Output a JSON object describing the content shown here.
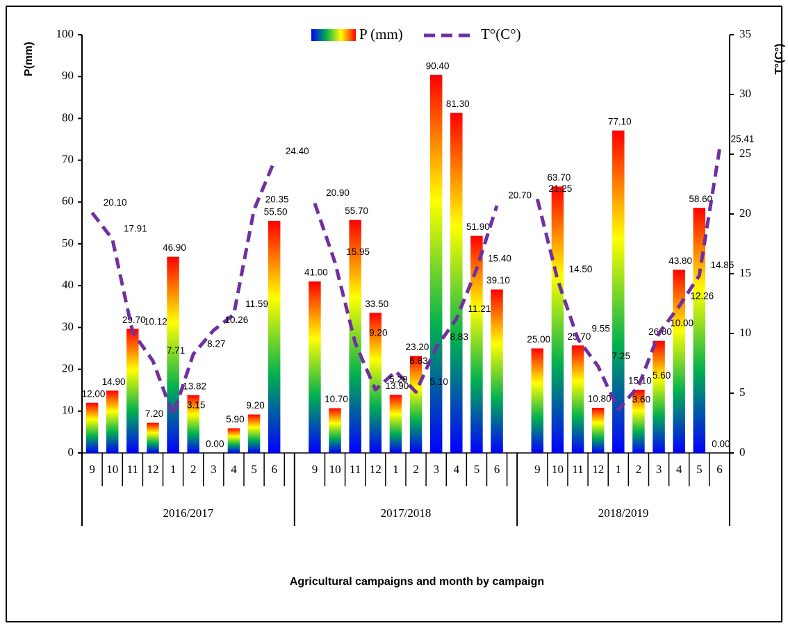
{
  "chart_data": {
    "type": "bar_line",
    "x_label": "Agricultural campaigns and month by campaign",
    "y_label": "P(mm)",
    "y2_label": "T°(C°)",
    "categories": [
      "9",
      "10",
      "11",
      "12",
      "1",
      "2",
      "3",
      "4",
      "5",
      "6",
      null,
      "9",
      "10",
      "11",
      "12",
      "1",
      "2",
      "3",
      "4",
      "5",
      "6",
      null,
      "9",
      "10",
      "11",
      "12",
      "1",
      "2",
      "3",
      "4",
      "5",
      "6"
    ],
    "groups": [
      "2016/2017",
      "2017/2018",
      "2018/2019"
    ],
    "ylim": [
      0,
      100
    ],
    "yticks": [
      0,
      10,
      20,
      30,
      40,
      50,
      60,
      70,
      80,
      90,
      100
    ],
    "y2lim": [
      0,
      35
    ],
    "y2ticks": [
      0,
      5,
      10,
      15,
      20,
      25,
      30,
      35
    ],
    "series": [
      {
        "name": "P (mm)",
        "type": "bar",
        "colors": [
          "#0000ff",
          "#00b050",
          "#ffff00",
          "#ff0000"
        ],
        "values": [
          12,
          14.9,
          29.7,
          7.2,
          46.9,
          13.82,
          0,
          5.9,
          9.2,
          55.5,
          null,
          41,
          10.7,
          55.7,
          33.5,
          13.9,
          23.2,
          90.4,
          81.3,
          51.9,
          39.1,
          null,
          25,
          63.7,
          25.7,
          10.8,
          77.1,
          15.1,
          26.8,
          43.8,
          58.6,
          0
        ],
        "value_labels": [
          "12.00",
          "14.90",
          "29.70",
          "7.20",
          "46.90",
          "13.82",
          "0.00",
          "5.90",
          "9.20",
          "55.50",
          null,
          "41.00",
          "10.70",
          "55.70",
          "33.50",
          "13.90",
          "23.20",
          "90.40",
          "81.30",
          "51.90",
          "39.10",
          null,
          "25.00",
          "63.70",
          "25.70",
          "10.80",
          "77.10",
          "15.10",
          "26.80",
          "43.80",
          "58.60",
          "0.00"
        ]
      },
      {
        "name": "T°(C°)",
        "type": "line",
        "axis": "y2",
        "color": "#7030a0",
        "dashed": true,
        "values": [
          20.1,
          17.91,
          10.12,
          7.71,
          3.15,
          8.27,
          10.26,
          11.59,
          20.35,
          24.4,
          null,
          20.9,
          15.95,
          9.2,
          5.29,
          6.83,
          5.1,
          8.83,
          11.21,
          15.4,
          20.7,
          null,
          21.25,
          14.5,
          9.55,
          7.25,
          3.6,
          5.6,
          10,
          12.26,
          14.85,
          25.41
        ],
        "value_labels": [
          "20.10",
          "17.91",
          "10.12",
          "7.71",
          "3.15",
          "8.27",
          "10.26",
          "11.59",
          "20.35",
          "24.40",
          null,
          "20.90",
          "15.95",
          "9.20",
          "5.29",
          "6.83",
          "5.10",
          "8.83",
          "11.21",
          "15.40",
          "20.70",
          null,
          "21.25",
          "14.50",
          "9.55",
          "7.25",
          "3.60",
          "5.60",
          "10.00",
          "12.26",
          "14.85",
          "25.41"
        ]
      }
    ]
  }
}
